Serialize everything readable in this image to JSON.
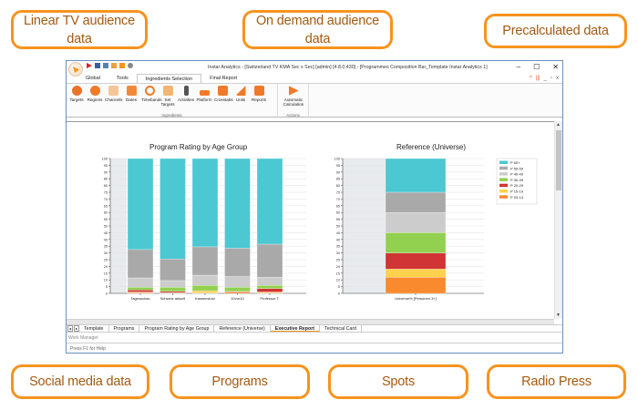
{
  "callouts": {
    "linear_tv": "Linear TV audience data",
    "on_demand": "On demand audience data",
    "precalculated": "Precalculated data",
    "social_media": "Social media data",
    "programs": "Programs",
    "spots": "Spots",
    "radio_press": "Radio Press"
  },
  "window": {
    "title": "Instar Analytics - [Switzerland TV KMA Sec x Sec] [admin] [4.8.0.430] - [Programmes Composition Bar_Template Instar Analytics 1]",
    "controls": {
      "minimize": "–",
      "maximize": "☐",
      "close": "✕"
    }
  },
  "ribbon": {
    "tabs": [
      "Global",
      "Tools",
      "Ingredients Selection",
      "Final Report"
    ],
    "active_tab": "Ingredients Selection",
    "groups": {
      "ingredients": {
        "label": "Ingredients",
        "buttons": [
          "Targets",
          "Regions",
          "Channels",
          "Dates",
          "Timebands",
          "Set Targets",
          "Activities",
          "Platform",
          "Crosstabs",
          "Units",
          "Reports"
        ]
      },
      "actions": {
        "label": "Actions",
        "buttons": [
          "Automatic Calculation"
        ]
      }
    }
  },
  "colors": {
    "accent": "#f7931e",
    "p60": "#4bc8d2",
    "p50_59": "#a9a9a9",
    "p40_49": "#cccccc",
    "p30_39": "#92d050",
    "p20_29": "#d03434",
    "p15_19": "#ffd24d",
    "p03_14": "#f98a2e"
  },
  "chart_data": [
    {
      "type": "bar",
      "stacked": true,
      "title": "Program Rating by Age Group",
      "categories": [
        "Tagesschau",
        "Schweiz aktuell",
        "Kassensturz",
        "10vor10",
        "Professor T."
      ],
      "ylim": [
        0,
        100
      ],
      "yticks": [
        0,
        5,
        10,
        15,
        20,
        25,
        30,
        35,
        40,
        45,
        50,
        55,
        60,
        65,
        70,
        75,
        80,
        85,
        90,
        95,
        100
      ],
      "grid": true,
      "series": [
        {
          "name": "P 03-14",
          "values": [
            0.5,
            0.3,
            0.3,
            0.8,
            0.3
          ]
        },
        {
          "name": "P 15-19",
          "values": [
            0.5,
            0.2,
            1.5,
            0.2,
            0.7
          ]
        },
        {
          "name": "P 20-29",
          "values": [
            1.5,
            1.0,
            0.2,
            0.5,
            2.5
          ]
        },
        {
          "name": "P 30-39",
          "values": [
            2,
            3,
            4,
            3,
            2.5
          ]
        },
        {
          "name": "P 40-49",
          "values": [
            7,
            5,
            7.5,
            8,
            6
          ]
        },
        {
          "name": "P 50-59",
          "values": [
            21,
            16,
            21,
            21,
            24.5
          ]
        },
        {
          "name": "P 60+",
          "values": [
            67.5,
            74.5,
            65.5,
            66.5,
            63.5
          ]
        }
      ]
    },
    {
      "type": "bar",
      "stacked": true,
      "title": "Reference (Universe)",
      "categories": [
        "Universe% [Personen 3+]"
      ],
      "ylim": [
        0,
        100
      ],
      "yticks": [
        0,
        5,
        10,
        15,
        20,
        25,
        30,
        35,
        40,
        45,
        50,
        55,
        60,
        65,
        70,
        75,
        80,
        85,
        90,
        95,
        100
      ],
      "grid": true,
      "legend": "right",
      "series": [
        {
          "name": "P 03-14",
          "values": [
            12
          ]
        },
        {
          "name": "P 15-19",
          "values": [
            6
          ]
        },
        {
          "name": "P 20-29",
          "values": [
            12
          ]
        },
        {
          "name": "P 30-39",
          "values": [
            15
          ]
        },
        {
          "name": "P 40-49",
          "values": [
            15
          ]
        },
        {
          "name": "P 50-59",
          "values": [
            15
          ]
        },
        {
          "name": "P 60+",
          "values": [
            25
          ]
        }
      ]
    }
  ],
  "legend": [
    "P 60+",
    "P 50-59",
    "P 40-49",
    "P 30-39",
    "P 20-29",
    "P 15-19",
    "P 03-14"
  ],
  "sheet_tabs": [
    "Template",
    "Programs",
    "Program Rating by Age Group",
    "Reference (Universe)",
    "Executive Report",
    "Technical Card"
  ],
  "active_sheet": "Executive Report",
  "work_manager": "Work Manager",
  "status": "Press F1 for Help"
}
